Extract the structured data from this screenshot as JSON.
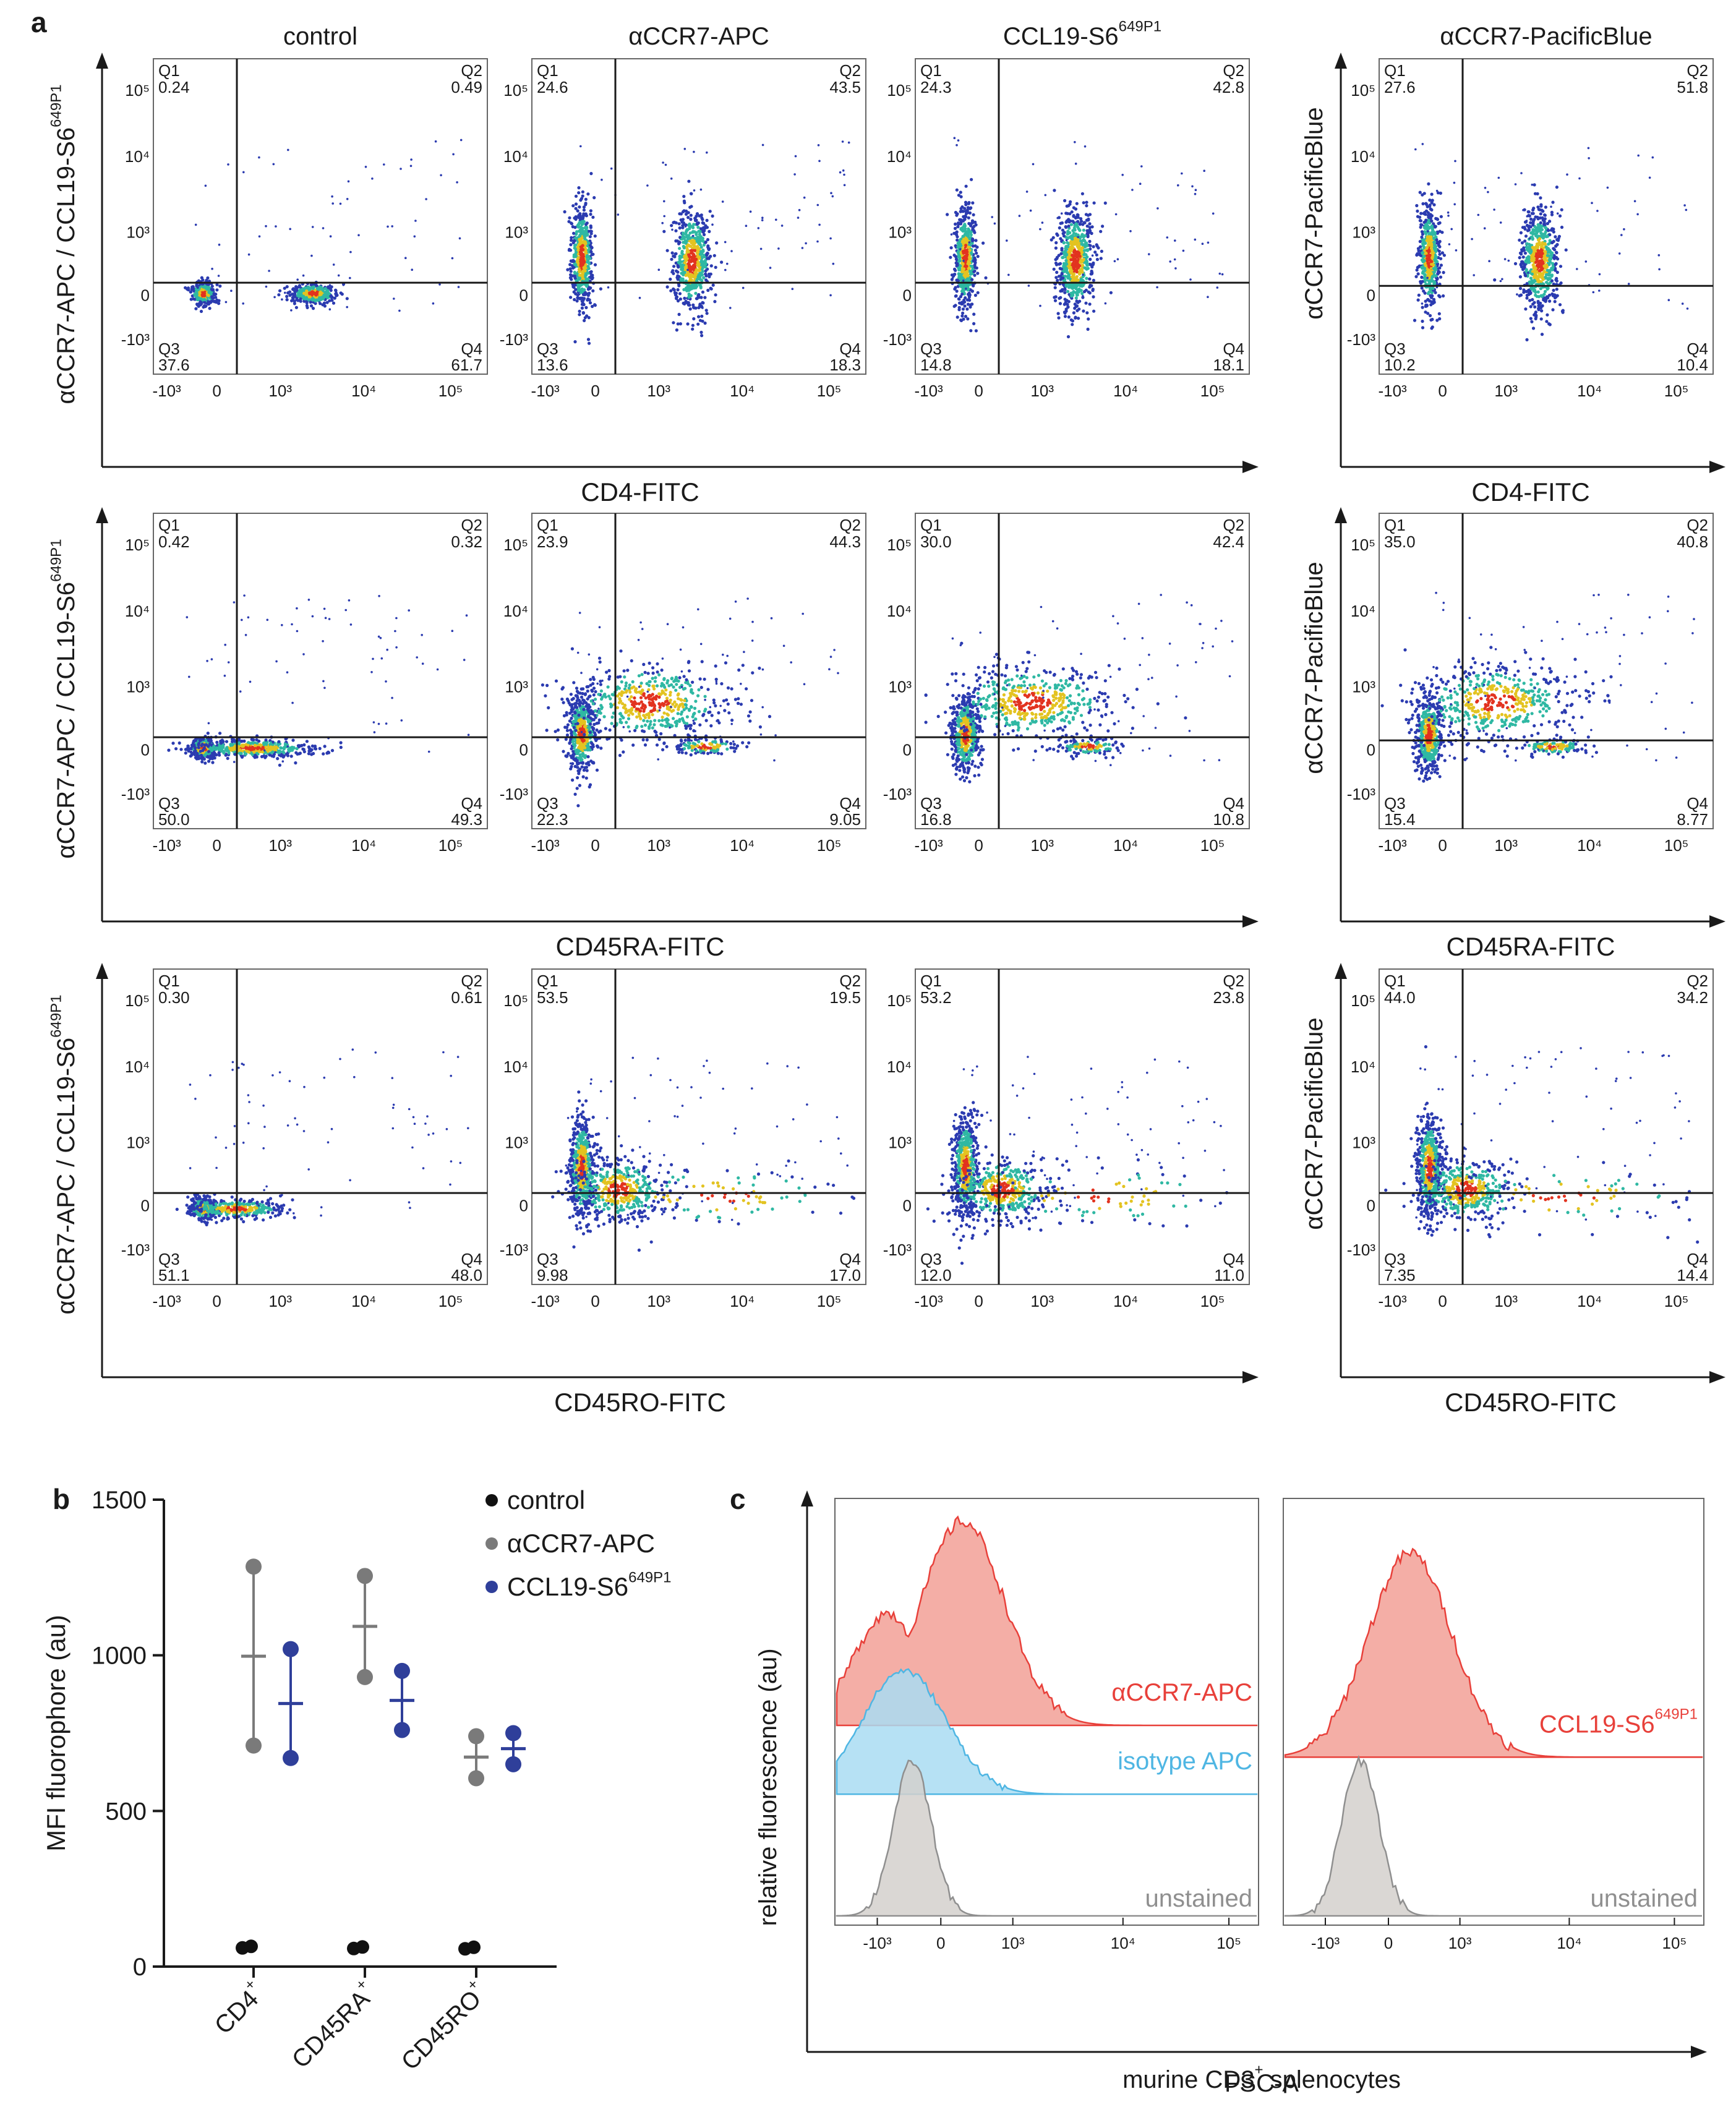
{
  "colors": {
    "axis": "#1a1a1a",
    "density_low": "#2b3bb0",
    "density_mid": "#2fb8a3",
    "density_high": "#e3c321",
    "density_peak": "#e2331f",
    "control": "#111111",
    "apc_grey": "#7a7a7a",
    "ccl19_blue": "#2f3f9a",
    "hist_red_fill": "#f2a097",
    "hist_red_line": "#e8403a",
    "hist_blue_fill": "#a9dcf2",
    "hist_blue_line": "#4fb6e3",
    "hist_grey_fill": "#d4d0cc",
    "hist_grey_line": "#8f8f8f"
  },
  "chart_data": [
    {
      "id": "a",
      "panel_label": "a",
      "type": "scatter",
      "plot_kind": "flow-cytometry-density",
      "column_titles": [
        "control",
        "αCCR7-APC",
        "CCL19-S6",
        "αCCR7-PacificBlue"
      ],
      "column_title_superscripts": [
        "",
        "",
        "649P1",
        ""
      ],
      "left_ylabel": "αCCR7-APC / CCL19-S6",
      "left_ylabel_superscript": "649P1",
      "right_ylabel": "αCCR7-PacificBlue",
      "tick_labels": {
        "x": [
          "-10³",
          "0",
          "10³",
          "10⁴",
          "10⁵"
        ],
        "y": [
          "10⁵",
          "10⁴",
          "10³",
          "0",
          "-10³"
        ]
      },
      "quadrant_labels": [
        "Q1",
        "Q2",
        "Q3",
        "Q4"
      ],
      "rows": [
        {
          "xlabel": "CD4-FITC",
          "quadrants": [
            {
              "Q1": "0.24",
              "Q2": "0.49",
              "Q3": "37.6",
              "Q4": "61.7"
            },
            {
              "Q1": "24.6",
              "Q2": "43.5",
              "Q3": "13.6",
              "Q4": "18.3"
            },
            {
              "Q1": "24.3",
              "Q2": "42.8",
              "Q3": "14.8",
              "Q4": "18.1"
            },
            {
              "Q1": "27.6",
              "Q2": "51.8",
              "Q3": "10.2",
              "Q4": "10.4"
            }
          ]
        },
        {
          "xlabel": "CD45RA-FITC",
          "quadrants": [
            {
              "Q1": "0.42",
              "Q2": "0.32",
              "Q3": "50.0",
              "Q4": "49.3"
            },
            {
              "Q1": "23.9",
              "Q2": "44.3",
              "Q3": "22.3",
              "Q4": "9.05"
            },
            {
              "Q1": "30.0",
              "Q2": "42.4",
              "Q3": "16.8",
              "Q4": "10.8"
            },
            {
              "Q1": "35.0",
              "Q2": "40.8",
              "Q3": "15.4",
              "Q4": "8.77"
            }
          ]
        },
        {
          "xlabel": "CD45RO-FITC",
          "quadrants": [
            {
              "Q1": "0.30",
              "Q2": "0.61",
              "Q3": "51.1",
              "Q4": "48.0"
            },
            {
              "Q1": "53.5",
              "Q2": "19.5",
              "Q3": "9.98",
              "Q4": "17.0"
            },
            {
              "Q1": "53.2",
              "Q2": "23.8",
              "Q3": "12.0",
              "Q4": "11.0"
            },
            {
              "Q1": "44.0",
              "Q2": "34.2",
              "Q3": "7.35",
              "Q4": "14.4"
            }
          ]
        }
      ]
    },
    {
      "id": "b",
      "panel_label": "b",
      "type": "scatter",
      "plot_kind": "dot-mean-range",
      "ylabel": "MFI fluorophore (au)",
      "ylim": [
        0,
        1500
      ],
      "yticks": [
        0,
        500,
        1000,
        1500
      ],
      "categories": [
        "CD4",
        "CD45RA",
        "CD45RO"
      ],
      "category_superscripts": [
        "+",
        "+",
        "+"
      ],
      "legend_position": "top-right",
      "series": [
        {
          "name": "control",
          "name_superscript": "",
          "points": [
            [
              60,
              65
            ],
            [
              58,
              63
            ],
            [
              57,
              62
            ]
          ],
          "means": [
            62,
            60,
            60
          ],
          "color_key": "control"
        },
        {
          "name": "αCCR7-APC",
          "name_superscript": "",
          "points": [
            [
              1285,
              710
            ],
            [
              1255,
              930
            ],
            [
              740,
              605
            ]
          ],
          "means": [
            997,
            1093,
            673
          ],
          "color_key": "apc_grey"
        },
        {
          "name": "CCL19-S6",
          "name_superscript": "649P1",
          "points": [
            [
              1020,
              670
            ],
            [
              950,
              760
            ],
            [
              750,
              650
            ]
          ],
          "means": [
            845,
            855,
            700
          ],
          "color_key": "ccl19_blue"
        }
      ]
    },
    {
      "id": "c",
      "panel_label": "c",
      "type": "area",
      "plot_kind": "histogram-overlay",
      "xlabel": "FSC-A",
      "xlabel_sub": "murine CD3",
      "xlabel_sub_superscript": "+",
      "xlabel_sub_tail": " splenocytes",
      "ylabel": "relative fluorescence (au)",
      "tick_labels": [
        "-10³",
        "0",
        "10³",
        "10⁴",
        "10⁵"
      ],
      "panels": [
        {
          "traces": [
            {
              "name": "αCCR7-APC",
              "name_superscript": "",
              "color_key": "hist_red",
              "peak": 3.2
            },
            {
              "name": "isotype APC",
              "name_superscript": "",
              "color_key": "hist_blue",
              "peak": 2.9
            },
            {
              "name": "unstained",
              "name_superscript": "",
              "color_key": "hist_grey",
              "peak": 2.2
            }
          ]
        },
        {
          "traces": [
            {
              "name": "CCL19-S6",
              "name_superscript": "649P1",
              "color_key": "hist_red",
              "peak": 2.7
            },
            {
              "name": "unstained",
              "name_superscript": "",
              "color_key": "hist_grey",
              "peak": 2.2
            }
          ]
        }
      ]
    }
  ]
}
